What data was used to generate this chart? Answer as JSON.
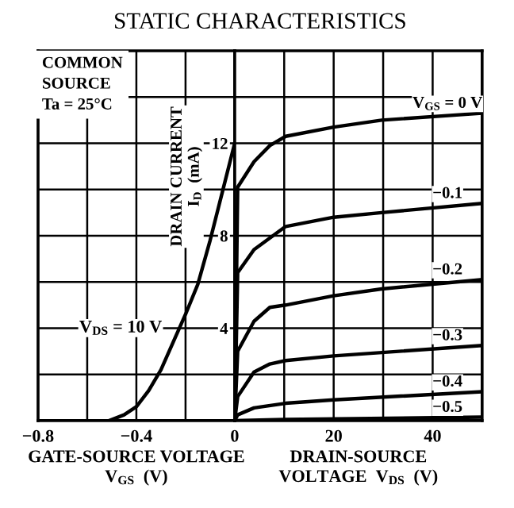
{
  "chart_data": [
    {
      "type": "line",
      "title": "STATIC CHARACTERISTICS",
      "xlabel": "GATE-SOURCE VOLTAGE\nV$_{GS}$  (V)",
      "xlim": [
        -0.8,
        0
      ],
      "xticks": [
        -0.8,
        {
          "value": -0.6,
          "label": null
        },
        -0.4,
        {
          "value": -0.2,
          "label": null
        },
        {
          "value": 0,
          "label": null
        }
      ],
      "ylim": [
        0,
        16
      ],
      "yticks": [
        {
          "value": 2,
          "label": null
        },
        {
          "value": 4,
          "label": null
        },
        {
          "value": 6,
          "label": null
        },
        {
          "value": 8,
          "label": null
        },
        {
          "value": 10,
          "label": null
        },
        {
          "value": 12,
          "label": null
        },
        {
          "value": 14,
          "label": null
        }
      ],
      "tick_labels": "x",
      "grid": true,
      "legend": false,
      "annotations": [
        "COMMON\nSOURCE\nTa = 25°C",
        "V$_{DS}$ = 10 V"
      ],
      "series": [
        {
          "color": "#000000",
          "x": [
            -0.51,
            -0.45,
            -0.4,
            -0.35,
            -0.3,
            -0.25,
            -0.2,
            -0.15,
            -0.1,
            -0.05,
            0
          ],
          "values": [
            0,
            0.25,
            0.6,
            1.3,
            2.2,
            3.4,
            4.6,
            5.9,
            7.8,
            9.9,
            12
          ]
        }
      ]
    },
    {
      "type": "line",
      "xlabel": "DRAIN-SOURCE\nVOLTAGE  V$_{DS}$  (V)",
      "ylabel": "DRAIN CURRENT\nI$_{D}$  (mA)",
      "xlim": [
        0,
        50
      ],
      "xticks": [
        0,
        {
          "value": 10,
          "label": null
        },
        20,
        {
          "value": 30,
          "label": null
        },
        40,
        {
          "value": 50,
          "label": null
        }
      ],
      "ylim": [
        0,
        16
      ],
      "yticks": [
        {
          "value": 2,
          "label": null
        },
        4,
        {
          "value": 6,
          "label": null
        },
        8,
        {
          "value": 10,
          "label": null
        },
        12,
        {
          "value": 14,
          "label": null
        }
      ],
      "grid": true,
      "legend": false,
      "series": [
        {
          "name": "V$_{GS}$ = 0 V",
          "color": "#000000",
          "x": [
            0,
            0.6,
            3.9,
            7.1,
            10.3,
            20,
            29.7,
            50
          ],
          "values": [
            0,
            10.1,
            11.2,
            11.9,
            12.3,
            12.7,
            13.0,
            13.3
          ]
        },
        {
          "name": "−0.1",
          "color": "#000000",
          "x": [
            0,
            0.6,
            3.9,
            10.3,
            20,
            29.7,
            50
          ],
          "values": [
            0,
            6.4,
            7.4,
            8.4,
            8.8,
            9.0,
            9.4
          ]
        },
        {
          "name": "−0.2",
          "color": "#000000",
          "x": [
            0,
            0.6,
            3.9,
            7.1,
            10.3,
            20,
            29.7,
            50
          ],
          "values": [
            0,
            3.0,
            4.3,
            4.9,
            5.0,
            5.4,
            5.7,
            6.1
          ]
        },
        {
          "name": "−0.3",
          "color": "#000000",
          "x": [
            0,
            0.6,
            3.9,
            7.1,
            10.3,
            20,
            50
          ],
          "values": [
            0,
            1.04,
            2.1,
            2.45,
            2.6,
            2.8,
            3.25
          ]
        },
        {
          "name": "−0.4",
          "color": "#000000",
          "x": [
            0,
            0.6,
            3.9,
            10.3,
            20,
            50
          ],
          "values": [
            0,
            0.25,
            0.55,
            0.75,
            0.9,
            1.25
          ]
        },
        {
          "name": "−0.5",
          "color": "#000000",
          "x": [
            0,
            10,
            50
          ],
          "values": [
            0,
            0.05,
            0.15
          ]
        }
      ]
    }
  ]
}
